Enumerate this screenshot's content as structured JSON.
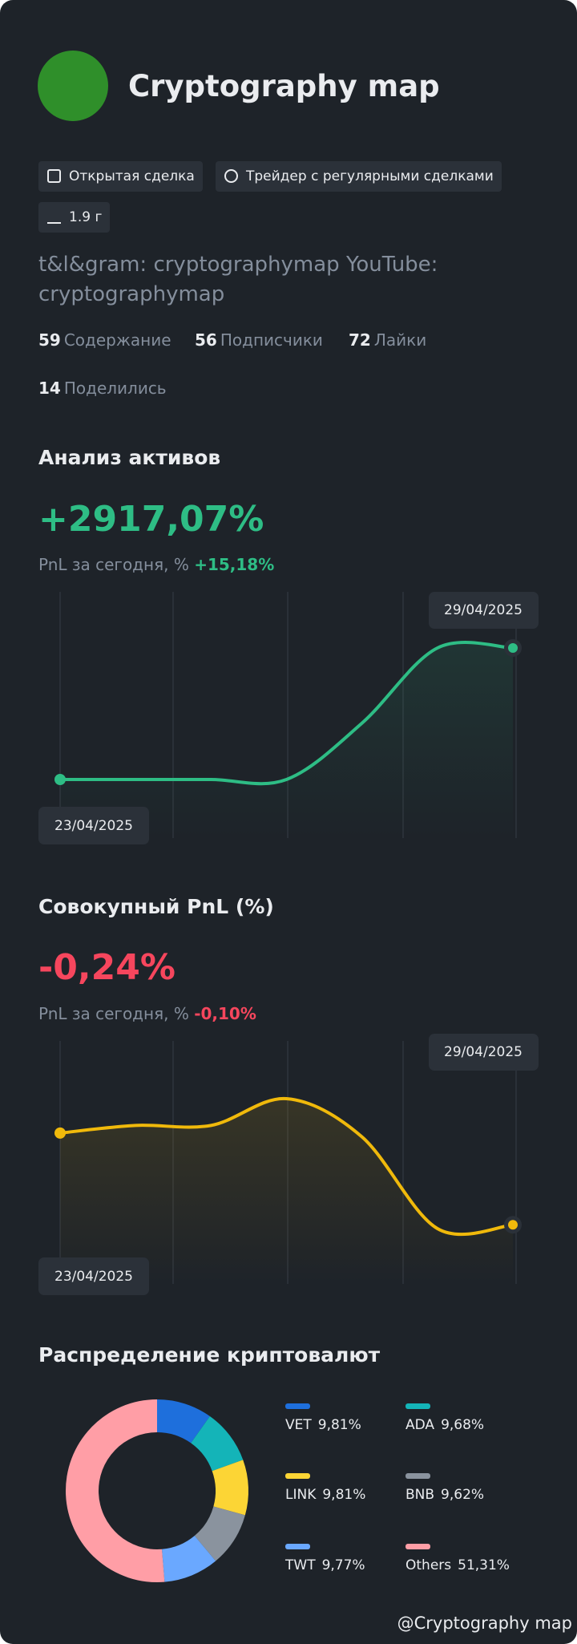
{
  "profile": {
    "name": "Cryptography map",
    "tags": [
      "Открытая сделка",
      "Трейдер с регулярными сделками",
      "1.9 г"
    ],
    "bio": "t&l&gram: cryptographymap YouTube: cryptographymap",
    "stats": [
      {
        "value": 59,
        "label": "Содержание"
      },
      {
        "value": 56,
        "label": "Подписчики"
      },
      {
        "value": 72,
        "label": "Лайки"
      },
      {
        "value": 14,
        "label": "Поделились"
      }
    ]
  },
  "chart_data": [
    {
      "type": "line",
      "title": "Анализ активов",
      "pnl": 2917.07,
      "pnl_label": "+2917,07%",
      "today_text": "PnL за сегодня, %",
      "today": 15.18,
      "today_label": "+15,18%",
      "categories": [
        "23/04/2025",
        null,
        null,
        null,
        null,
        null,
        "29/04/2025"
      ],
      "series": [
        {
          "color": "#2ebd85",
          "values": [
            0,
            0,
            0,
            0,
            1250,
            2917,
            2917.07
          ]
        }
      ]
    },
    {
      "type": "line",
      "title": "Совокупный PnL (%)",
      "pnl": -0.24,
      "pnl_label": "-0,24%",
      "today_text": "PnL за сегодня, %",
      "today": -0.1,
      "today_label": "-0,10%",
      "categories": [
        "23/04/2025",
        null,
        null,
        null,
        null,
        null,
        "29/04/2025"
      ],
      "series": [
        {
          "color": "#f0b90b",
          "values": [
            0,
            0.02,
            0.02,
            0.09,
            -0.01,
            -0.25,
            -0.24
          ]
        }
      ]
    },
    {
      "type": "pie",
      "donut": true,
      "title": "Распределение криптовалют",
      "categories": [
        "VET",
        "ADA",
        "LINK",
        "BNB",
        "TWT",
        "Others"
      ],
      "values": [
        9.81,
        9.68,
        9.81,
        9.62,
        9.77,
        51.31
      ],
      "value_labels": [
        "9,81%",
        "9,68%",
        "9,81%",
        "9,62%",
        "9,77%",
        "51,31%"
      ],
      "colors": [
        "#1e6fdc",
        "#14b4b8",
        "#fcd535",
        "#8a939e",
        "#6aa8ff",
        "#ff9ea6"
      ]
    }
  ],
  "watermark": "@Cryptography map"
}
